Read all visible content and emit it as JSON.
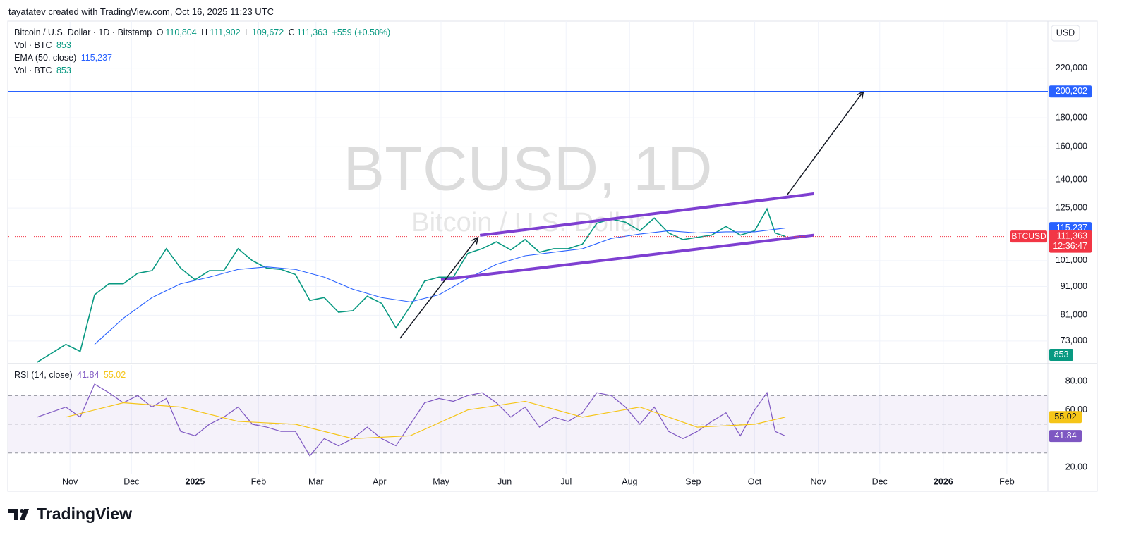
{
  "chart_data": {
    "type": "line",
    "header": "tayatatev created with TradingView.com, Oct 16, 2025 11:23 UTC",
    "legend": {
      "symbol": "Bitcoin / U.S. Dollar · 1D · Bitstamp",
      "open_key": "O",
      "open": "110,804",
      "high_key": "H",
      "high": "111,902",
      "low_key": "L",
      "low": "109,672",
      "close_key": "C",
      "close": "111,363",
      "change": "+559 (+0.50%)",
      "vol_name": "Vol · BTC",
      "vol": "853",
      "ema_name": "EMA (50, close)",
      "ema": "115,237"
    },
    "watermark": {
      "symbol": "BTCUSD, 1D",
      "name": "Bitcoin / U.S. Dollar"
    },
    "currency": "USD",
    "log_scale": true,
    "grid": true,
    "xlim": [
      1,
      508
    ],
    "xticks": [
      {
        "value": 31,
        "label": "Nov"
      },
      {
        "value": 61,
        "label": "Dec"
      },
      {
        "value": 92,
        "label": "2025"
      },
      {
        "value": 123,
        "label": "Feb"
      },
      {
        "value": 151,
        "label": "Mar"
      },
      {
        "value": 182,
        "label": "Apr"
      },
      {
        "value": 212,
        "label": "May"
      },
      {
        "value": 243,
        "label": "Jun"
      },
      {
        "value": 273,
        "label": "Jul"
      },
      {
        "value": 304,
        "label": "Aug"
      },
      {
        "value": 335,
        "label": "Sep"
      },
      {
        "value": 365,
        "label": "Oct"
      },
      {
        "value": 396,
        "label": "Nov"
      },
      {
        "value": 426,
        "label": "Dec"
      },
      {
        "value": 457,
        "label": "2026"
      },
      {
        "value": 488,
        "label": "Feb"
      }
    ],
    "ylim": [
      66800,
      266000
    ],
    "yticks": [
      {
        "value": 73000,
        "label": "73,000"
      },
      {
        "value": 81000,
        "label": "81,000"
      },
      {
        "value": 91000,
        "label": "91,000"
      },
      {
        "value": 101000,
        "label": "101,000"
      },
      {
        "value": 125000,
        "label": "125,000"
      },
      {
        "value": 140000,
        "label": "140,000"
      },
      {
        "value": 160000,
        "label": "160,000"
      },
      {
        "value": 180000,
        "label": "180,000"
      },
      {
        "value": 220000,
        "label": "220,000"
      }
    ],
    "series": [
      {
        "name": "Bitcoin / U.S. Dollar · 1D · Bitstamp",
        "color": "#089981",
        "x": [
          15,
          29,
          36,
          43,
          50,
          57,
          64,
          71,
          78,
          85,
          92,
          99,
          106,
          113,
          120,
          127,
          134,
          141,
          148,
          155,
          162,
          169,
          176,
          183,
          190,
          197,
          204,
          211,
          218,
          225,
          232,
          239,
          246,
          253,
          260,
          267,
          274,
          281,
          288,
          295,
          302,
          309,
          316,
          323,
          330,
          337,
          344,
          351,
          358,
          365,
          371,
          375,
          380
        ],
        "values": [
          67000,
          72000,
          70000,
          88000,
          92000,
          92000,
          96000,
          97000,
          106000,
          98000,
          93500,
          97000,
          97000,
          106000,
          101000,
          98000,
          97500,
          95500,
          86000,
          87000,
          82000,
          82500,
          87500,
          85000,
          77000,
          84000,
          93000,
          94500,
          94500,
          104000,
          106000,
          109000,
          105500,
          110000,
          104500,
          106000,
          106000,
          108000,
          117500,
          119500,
          118000,
          114000,
          120000,
          113000,
          110000,
          111000,
          112000,
          116000,
          112000,
          114000,
          124500,
          113000,
          111363
        ]
      },
      {
        "name": "EMA (50, close)",
        "color": "#2962ff",
        "x": [
          43,
          57,
          71,
          85,
          99,
          113,
          127,
          141,
          155,
          169,
          183,
          197,
          211,
          225,
          239,
          253,
          267,
          281,
          295,
          309,
          323,
          337,
          351,
          365,
          380
        ],
        "values": [
          72000,
          80000,
          87000,
          92000,
          94500,
          97500,
          98500,
          97500,
          94500,
          90000,
          87000,
          85500,
          88000,
          94000,
          99500,
          103000,
          104500,
          106000,
          110500,
          112500,
          114000,
          113000,
          113500,
          113500,
          115237
        ]
      }
    ],
    "price_lines": [
      {
        "value": 200202,
        "label": "200,202",
        "color": "#2962ff"
      },
      {
        "value": 115237,
        "label": "115,237",
        "color": "#2962ff"
      },
      {
        "value": 111363,
        "label": "111,363",
        "color": "#f23645",
        "tag": "BTCUSD",
        "countdown": "12:36:47"
      }
    ],
    "volume_tag": {
      "label": "853",
      "color": "#089981"
    },
    "drawings": [
      {
        "color": "#7e3fd1",
        "points": [
          [
            231,
            111900
          ],
          [
            394,
            132400
          ]
        ]
      },
      {
        "color": "#7e3fd1",
        "points": [
          [
            212,
            93500
          ],
          [
            394,
            112000
          ]
        ]
      },
      {
        "color": "#131722",
        "arrow": true,
        "points": [
          [
            192,
            73800
          ],
          [
            230,
            111000
          ]
        ]
      },
      {
        "color": "#131722",
        "arrow": true,
        "points": [
          [
            381,
            132000
          ],
          [
            418,
            200202
          ]
        ]
      }
    ],
    "rsi": {
      "title": "RSI (14, close)",
      "ylim": [
        15.6,
        91.3
      ],
      "yticks": [
        {
          "value": 80,
          "label": "80.00"
        },
        {
          "value": 60,
          "label": "60.00"
        },
        {
          "value": 20,
          "label": "20.00"
        }
      ],
      "levels": [
        70,
        50,
        30
      ],
      "series": [
        {
          "color": "#7e57c2",
          "label": "41.84",
          "x": [
            15,
            29,
            36,
            43,
            50,
            57,
            64,
            71,
            78,
            85,
            92,
            99,
            106,
            113,
            120,
            127,
            134,
            141,
            148,
            155,
            162,
            169,
            176,
            183,
            190,
            197,
            204,
            211,
            218,
            225,
            232,
            239,
            246,
            253,
            260,
            267,
            274,
            281,
            288,
            295,
            302,
            309,
            316,
            323,
            330,
            337,
            344,
            351,
            358,
            365,
            371,
            375,
            380
          ],
          "values": [
            55,
            62,
            55,
            78,
            72,
            65,
            70,
            62,
            68,
            45,
            42,
            50,
            55,
            62,
            50,
            48,
            45,
            45,
            28,
            40,
            35,
            40,
            48,
            40,
            35,
            50,
            65,
            68,
            66,
            70,
            72,
            65,
            55,
            62,
            48,
            55,
            52,
            58,
            72,
            70,
            62,
            50,
            62,
            45,
            40,
            45,
            52,
            58,
            42,
            60,
            72,
            45,
            41.84
          ]
        },
        {
          "color": "#f5c518",
          "label": "55.02",
          "x": [
            29,
            57,
            85,
            113,
            141,
            169,
            197,
            225,
            253,
            281,
            309,
            337,
            365,
            380
          ],
          "values": [
            55,
            65,
            62,
            52,
            50,
            40,
            42,
            60,
            66,
            55,
            62,
            48,
            50,
            55.02
          ]
        }
      ]
    },
    "footer": "TradingView"
  }
}
